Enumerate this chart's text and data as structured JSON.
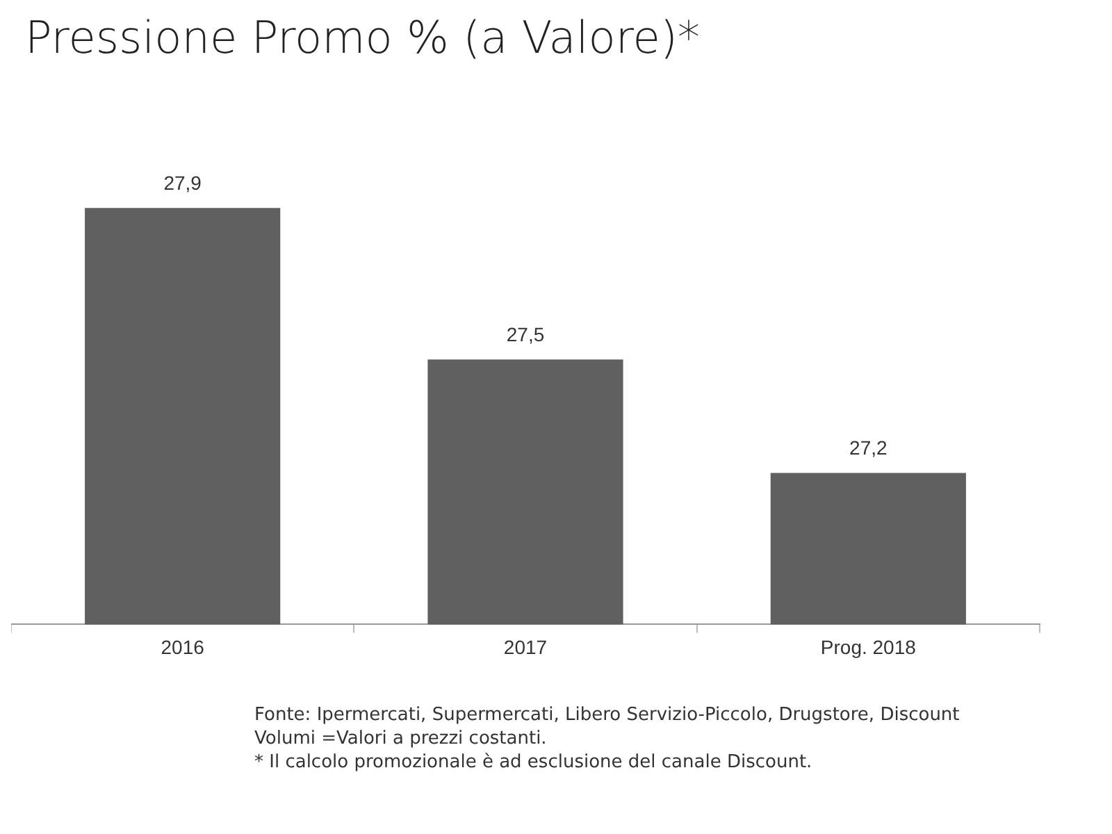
{
  "chart_data": {
    "type": "bar",
    "title": "Pressione Promo % (a Valore)*",
    "categories": [
      "2016",
      "2017",
      "Prog. 2018"
    ],
    "values": [
      27.9,
      27.5,
      27.2
    ],
    "color": "#606060",
    "value_labels": [
      "27,9",
      "27,5",
      "27,2"
    ],
    "grid": false,
    "legend": false,
    "annotations": [
      "Fonte: Ipermercati, Supermercati, Libero Servizio-Piccolo, Drugstore, Discount",
      "Volumi =Valori a prezzi costanti.",
      "* Il calcolo promozionale è ad esclusione del canale Discount."
    ]
  }
}
